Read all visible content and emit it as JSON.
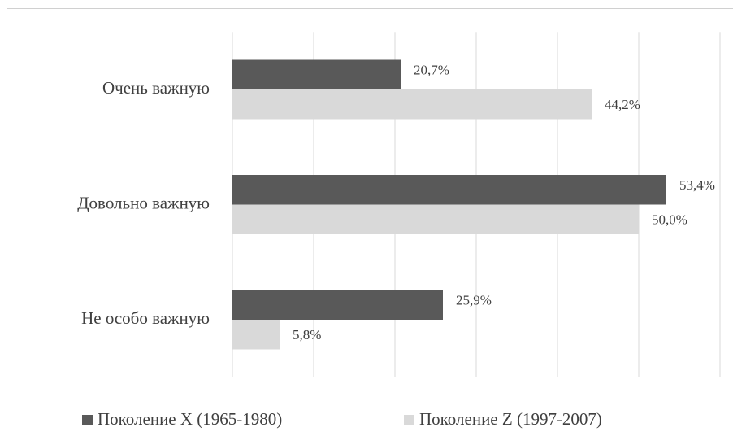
{
  "chart_data": {
    "type": "barh",
    "categories": [
      "Очень важную",
      "Довольно важную",
      "Не особо важную"
    ],
    "series": [
      {
        "name": "Поколение X (1965-1980)",
        "color": "#595959",
        "values": [
          20.7,
          53.4,
          25.9
        ],
        "value_labels": [
          "20,7%",
          "53,4%",
          "25,9%"
        ]
      },
      {
        "name": "Поколение Z (1997-2007)",
        "color": "#d9d9d9",
        "values": [
          44.2,
          50.0,
          5.8
        ],
        "value_labels": [
          "44,2%",
          "50,0%",
          "5,8%"
        ]
      }
    ],
    "xlim": [
      0,
      60
    ],
    "xticks": [
      0,
      10,
      20,
      30,
      40,
      50,
      60
    ],
    "grid": true,
    "legend": "bottom"
  }
}
